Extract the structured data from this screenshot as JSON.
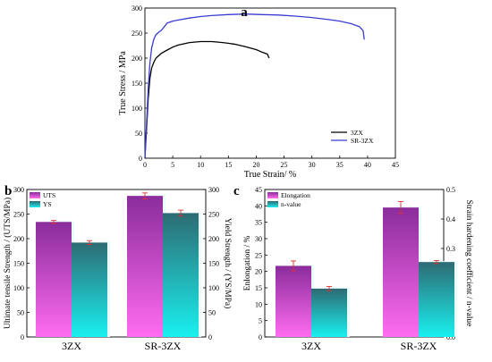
{
  "chart_data": [
    {
      "panel": "a",
      "type": "line",
      "xlabel": "True Strain/ %",
      "ylabel": "True Stress / MPa",
      "xlim": [
        0,
        45
      ],
      "ylim": [
        0,
        300
      ],
      "xticks": [
        0,
        5,
        10,
        15,
        20,
        25,
        30,
        35,
        40,
        45
      ],
      "yticks": [
        0,
        50,
        100,
        150,
        200,
        250,
        300
      ],
      "legend_position": "bottom-right",
      "series": [
        {
          "name": "3ZX",
          "color": "#000000",
          "points": [
            [
              0,
              0
            ],
            [
              0.3,
              60
            ],
            [
              0.6,
              120
            ],
            [
              0.9,
              160
            ],
            [
              1.2,
              180
            ],
            [
              1.6,
              192
            ],
            [
              2,
              200
            ],
            [
              3,
              210
            ],
            [
              4,
              216
            ],
            [
              5,
              222
            ],
            [
              6,
              226
            ],
            [
              8,
              231
            ],
            [
              10,
              233
            ],
            [
              12,
              233
            ],
            [
              14,
              231
            ],
            [
              16,
              228
            ],
            [
              18,
              223
            ],
            [
              20,
              217
            ],
            [
              21,
              212
            ],
            [
              22,
              208
            ],
            [
              22.3,
              200
            ]
          ]
        },
        {
          "name": "SR-3ZX",
          "color": "#3b3bd1",
          "points": [
            [
              0,
              0
            ],
            [
              0.3,
              70
            ],
            [
              0.6,
              140
            ],
            [
              0.9,
              190
            ],
            [
              1.2,
              220
            ],
            [
              1.6,
              238
            ],
            [
              2,
              247
            ],
            [
              2.5,
              252
            ],
            [
              3,
              256
            ],
            [
              3.5,
              263
            ],
            [
              4,
              270
            ],
            [
              5,
              274
            ],
            [
              6,
              276
            ],
            [
              8,
              280
            ],
            [
              10,
              283
            ],
            [
              12,
              285
            ],
            [
              15,
              287
            ],
            [
              18,
              288
            ],
            [
              21,
              287
            ],
            [
              24,
              286
            ],
            [
              27,
              284
            ],
            [
              30,
              281
            ],
            [
              33,
              277
            ],
            [
              35,
              274
            ],
            [
              37,
              269
            ],
            [
              38.5,
              263
            ],
            [
              39.2,
              255
            ],
            [
              39.4,
              237
            ]
          ]
        }
      ]
    },
    {
      "panel": "b",
      "type": "bar",
      "categories": [
        "3ZX",
        "SR-3ZX"
      ],
      "ylabel_left": "Ultimate tensile Strength / (UTS/MPa)",
      "ylabel_right": "Yield Strength / (YS/MPa)",
      "ylim": [
        0,
        300
      ],
      "yticks": [
        0,
        50,
        100,
        150,
        200,
        250,
        300
      ],
      "legend_position": "top-left",
      "series": [
        {
          "name": "UTS",
          "values": [
            234,
            287
          ],
          "errors": [
            3,
            6
          ],
          "color_top": "#8a2c9c",
          "color_bottom": "#ff6cf0"
        },
        {
          "name": "YS",
          "values": [
            192,
            252
          ],
          "errors": [
            4,
            6
          ],
          "color_top": "#2d6b73",
          "color_bottom": "#19f0f0"
        }
      ]
    },
    {
      "panel": "c",
      "type": "bar",
      "categories": [
        "3ZX",
        "SR-3ZX"
      ],
      "ylabel_left": "Enlongation / %",
      "ylabel_right": "Strain hardening coefficient / n-value",
      "ylim_left": [
        0,
        45
      ],
      "ylim_right": [
        0,
        0.5
      ],
      "yticks_left": [
        0,
        5,
        10,
        15,
        20,
        25,
        30,
        35,
        40,
        45
      ],
      "yticks_right": [
        0.0,
        0.1,
        0.2,
        0.3,
        0.4,
        0.5
      ],
      "legend_position": "top-left",
      "series": [
        {
          "name": "Elongation",
          "axis": "left",
          "values": [
            21.7,
            39.5
          ],
          "errors": [
            1.5,
            1.8
          ],
          "color_top": "#8a2c9c",
          "color_bottom": "#ff6cf0"
        },
        {
          "name": "n-value",
          "axis": "right",
          "values": [
            0.164,
            0.254
          ],
          "errors": [
            0.007,
            0.005
          ],
          "color_top": "#2d6b73",
          "color_bottom": "#19f0f0"
        }
      ]
    }
  ],
  "error_bar_color": "#e03030"
}
